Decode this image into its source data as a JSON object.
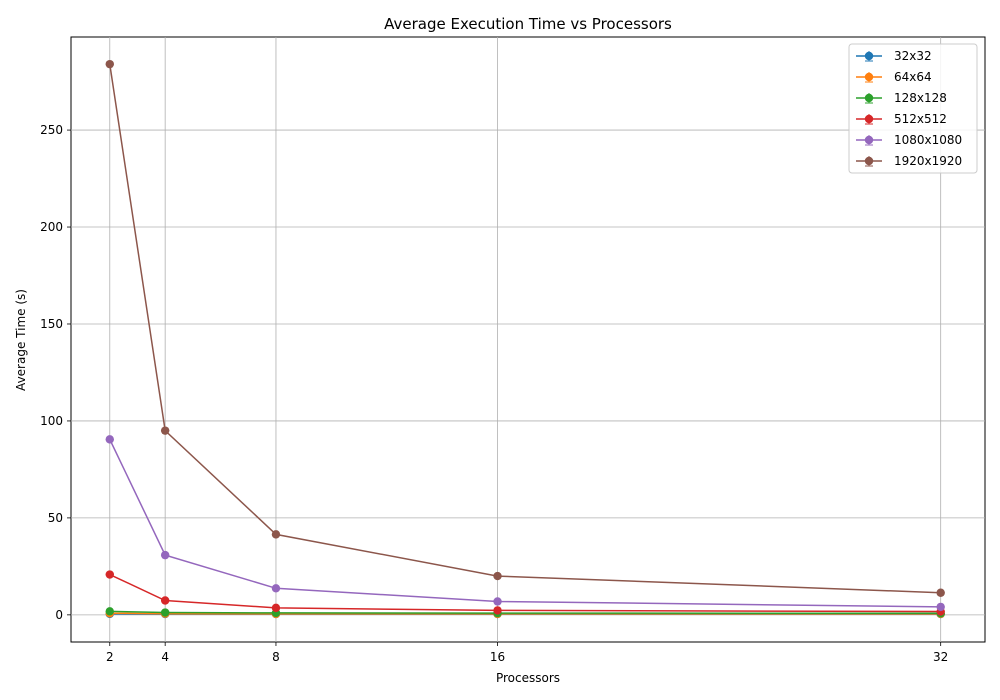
{
  "chart_data": {
    "type": "line",
    "title": "Average Execution Time vs Processors",
    "xlabel": "Processors",
    "ylabel": "Average Time (s)",
    "x": [
      2,
      4,
      8,
      16,
      32
    ],
    "x_ticks": [
      "2",
      "4",
      "8",
      "16",
      "32"
    ],
    "y_ticks": [
      "0",
      "50",
      "100",
      "150",
      "200",
      "250"
    ],
    "ylim": [
      -14,
      298
    ],
    "xlim": [
      0.6,
      33.6
    ],
    "grid": true,
    "legend_position": "top-right",
    "series": [
      {
        "name": "32x32",
        "color": "#1f77b4",
        "values": [
          0.5,
          0.4,
          0.4,
          0.4,
          0.4
        ]
      },
      {
        "name": "64x64",
        "color": "#ff7f0e",
        "values": [
          0.8,
          0.6,
          0.5,
          0.5,
          0.5
        ]
      },
      {
        "name": "128x128",
        "color": "#2ca02c",
        "values": [
          1.8,
          1.2,
          1.0,
          0.9,
          0.8
        ]
      },
      {
        "name": "512x512",
        "color": "#d62728",
        "values": [
          20.8,
          7.4,
          3.6,
          2.3,
          1.7
        ]
      },
      {
        "name": "1080x1080",
        "color": "#9467bd",
        "values": [
          90.5,
          30.8,
          13.7,
          6.9,
          4.1
        ]
      },
      {
        "name": "1920x1920",
        "color": "#8c564b",
        "values": [
          284.0,
          95.0,
          41.5,
          20.0,
          11.4
        ]
      }
    ]
  }
}
